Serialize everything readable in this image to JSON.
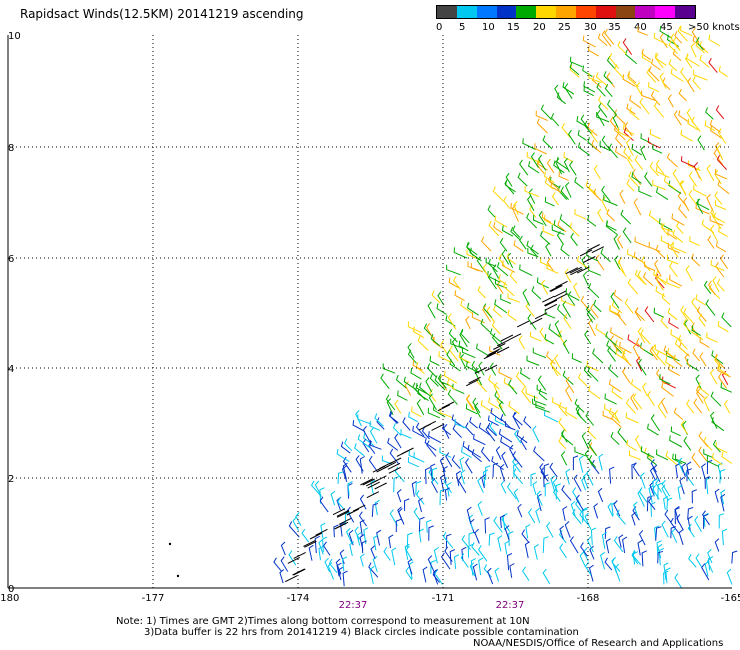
{
  "title": "Rapidsact Winds(12.5KM) 20141219 ascending",
  "legend": {
    "colors": [
      "#444444",
      "#00c8f0",
      "#0078ff",
      "#0032c8",
      "#00aa00",
      "#ffd700",
      "#ffa500",
      "#ff4500",
      "#e01010",
      "#8b4513",
      "#c000c0",
      "#ff00ff",
      "#5a0090"
    ],
    "labels": [
      "0",
      "5",
      "10",
      "15",
      "20",
      "25",
      "30",
      "35",
      "40",
      "45",
      ">50 knots"
    ]
  },
  "axes": {
    "x_labels": [
      "-180",
      "-177",
      "-174",
      "-171",
      "-168",
      "-165"
    ],
    "y_labels": [
      "0",
      "2",
      "4",
      "6",
      "8",
      "10"
    ],
    "time_labels": [
      "22:37",
      "22:37"
    ],
    "grid": true
  },
  "notes": {
    "line1": "Note: 1) Times are GMT 2)Times along bottom correspond to measurement at 10N",
    "line2": "3)Data buffer is 22 hrs from 20141219 4) Black circles indicate possible contamination",
    "line3": "NOAA/NESDIS/Office of Research and Applications"
  },
  "colors": {
    "time_label": "#800080",
    "grid": "#000000",
    "barb_low": "#00c8f0",
    "barb_mid": "#0032c8",
    "barb_green": "#00aa00",
    "barb_yellow": "#ffd700",
    "barb_orange": "#ffa500",
    "barb_red": "#e01010"
  }
}
